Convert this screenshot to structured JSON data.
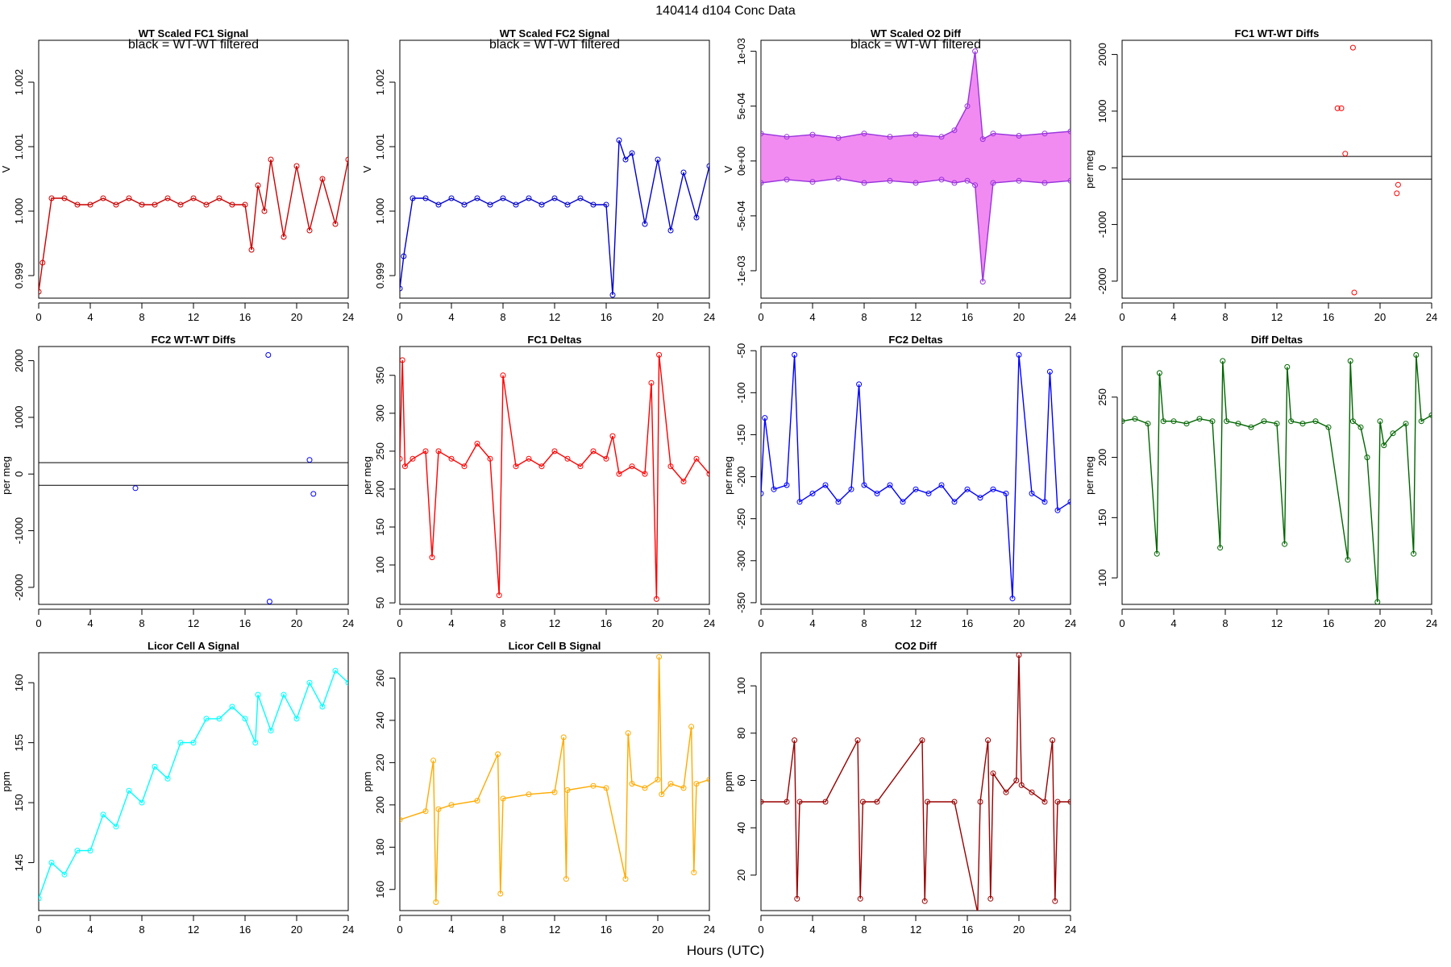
{
  "page_title": "140414   d104   Conc Data",
  "x_axis_label": "Hours (UTC)",
  "chart_data": [
    {
      "id": "wt-fc1",
      "type": "scatter",
      "title": "WT Scaled FC1 Signal",
      "annotation": "black = WT-WT filtered",
      "ylabel": "V",
      "color": "#cc0000",
      "xlim": [
        0,
        24
      ],
      "ylim": [
        0.99865,
        1.00265
      ],
      "yticks": [
        0.999,
        1.0,
        1.001,
        1.002
      ],
      "ytick_labels": [
        "0.999",
        "1.000",
        "1.001",
        "1.002"
      ],
      "xticks": [
        0,
        4,
        8,
        12,
        16,
        20,
        24
      ],
      "series": [
        {
          "name": "signal",
          "x": [
            0,
            0.3,
            1,
            2,
            3,
            4,
            5,
            6,
            7,
            8,
            9,
            10,
            11,
            12,
            13,
            14,
            15,
            16,
            16.5,
            17,
            17.5,
            18,
            19,
            20,
            21,
            22,
            23,
            24
          ],
          "y": [
            0.99875,
            0.9992,
            1.0002,
            1.0002,
            1.0001,
            1.0001,
            1.0002,
            1.0001,
            1.0002,
            1.0001,
            1.0001,
            1.0002,
            1.0001,
            1.0002,
            1.0001,
            1.0002,
            1.0001,
            1.0001,
            0.9994,
            1.0004,
            1.0,
            1.0008,
            0.9996,
            1.0007,
            0.9997,
            1.0005,
            0.9998,
            1.0008
          ]
        }
      ]
    },
    {
      "id": "wt-fc2",
      "type": "scatter",
      "title": "WT Scaled FC2 Signal",
      "annotation": "black = WT-WT filtered",
      "ylabel": "V",
      "color": "#0000cc",
      "xlim": [
        0,
        24
      ],
      "ylim": [
        0.99865,
        1.00265
      ],
      "yticks": [
        0.999,
        1.0,
        1.001,
        1.002
      ],
      "ytick_labels": [
        "0.999",
        "1.000",
        "1.001",
        "1.002"
      ],
      "xticks": [
        0,
        4,
        8,
        12,
        16,
        20,
        24
      ],
      "series": [
        {
          "name": "signal",
          "x": [
            0,
            0.3,
            1,
            2,
            3,
            4,
            5,
            6,
            7,
            8,
            9,
            10,
            11,
            12,
            13,
            14,
            15,
            16,
            16.5,
            17,
            17.5,
            18,
            19,
            20,
            21,
            22,
            23,
            24
          ],
          "y": [
            0.9988,
            0.9993,
            1.0002,
            1.0002,
            1.0001,
            1.0002,
            1.0001,
            1.0002,
            1.0001,
            1.0002,
            1.0001,
            1.0002,
            1.0001,
            1.0002,
            1.0001,
            1.0002,
            1.0001,
            1.0001,
            0.9987,
            1.0011,
            1.0008,
            1.0009,
            0.9998,
            1.0008,
            0.9997,
            1.0006,
            0.9999,
            1.0007
          ]
        }
      ]
    },
    {
      "id": "wt-o2",
      "type": "scatter",
      "title": "WT Scaled O2 Diff",
      "annotation": "black = WT-WT filtered",
      "ylabel": "V",
      "color": "#9933dd",
      "fill_color": "#ee77ee",
      "xlim": [
        0,
        24
      ],
      "ylim": [
        -0.00125,
        0.0011
      ],
      "yticks": [
        -0.001,
        -0.0005,
        0,
        0.0005,
        0.001
      ],
      "ytick_labels": [
        "-1e-03",
        "-5e-04",
        "0e+00",
        "5e-04",
        "1e-03"
      ],
      "xticks": [
        0,
        4,
        8,
        12,
        16,
        20,
        24
      ],
      "series": [
        {
          "name": "upper",
          "x": [
            0,
            2,
            4,
            6,
            8,
            10,
            12,
            14,
            15,
            16,
            16.6,
            17.2,
            18,
            20,
            22,
            24
          ],
          "y": [
            0.00025,
            0.00022,
            0.00024,
            0.00021,
            0.00025,
            0.00022,
            0.00024,
            0.00022,
            0.00028,
            0.0005,
            0.001,
            0.0002,
            0.00025,
            0.00023,
            0.00025,
            0.00027
          ]
        },
        {
          "name": "lower",
          "x": [
            0,
            2,
            4,
            6,
            8,
            10,
            12,
            14,
            15,
            16,
            16.6,
            17.2,
            18,
            20,
            22,
            24
          ],
          "y": [
            -0.0002,
            -0.00017,
            -0.00019,
            -0.00016,
            -0.0002,
            -0.00018,
            -0.0002,
            -0.00017,
            -0.0002,
            -0.00018,
            -0.00022,
            -0.0011,
            -0.0002,
            -0.00018,
            -0.0002,
            -0.00018
          ]
        }
      ]
    },
    {
      "id": "fc1-diffs",
      "type": "scatter",
      "title": "FC1 WT-WT Diffs",
      "ylabel": "per meg",
      "color": "#ff0000",
      "xlim": [
        0,
        24
      ],
      "ylim": [
        -2300,
        2250
      ],
      "yticks": [
        -2000,
        -1000,
        0,
        1000,
        2000
      ],
      "ytick_labels": [
        "-2000",
        "-1000",
        "0",
        "1000",
        "2000"
      ],
      "xticks": [
        0,
        4,
        8,
        12,
        16,
        20,
        24
      ],
      "hlines": [
        200,
        -200
      ],
      "series": [
        {
          "name": "diffs",
          "x": [
            16.7,
            17,
            17.3,
            17.9,
            18,
            21.3,
            21.4
          ],
          "y": [
            1050,
            1050,
            250,
            2120,
            -2200,
            -450,
            -300
          ]
        }
      ]
    },
    {
      "id": "fc2-diffs",
      "type": "scatter",
      "title": "FC2 WT-WT Diffs",
      "ylabel": "per meg",
      "color": "#0000ff",
      "xlim": [
        0,
        24
      ],
      "ylim": [
        -2300,
        2250
      ],
      "yticks": [
        -2000,
        -1000,
        0,
        1000,
        2000
      ],
      "ytick_labels": [
        "-2000",
        "-1000",
        "0",
        "1000",
        "2000"
      ],
      "xticks": [
        0,
        4,
        8,
        12,
        16,
        20,
        24
      ],
      "hlines": [
        200,
        -200
      ],
      "series": [
        {
          "name": "diffs",
          "x": [
            17.8,
            17.9,
            21,
            21.3,
            7.5
          ],
          "y": [
            2100,
            -2250,
            250,
            -350,
            -250
          ]
        }
      ]
    },
    {
      "id": "fc1-deltas",
      "type": "line",
      "title": "FC1 Deltas",
      "ylabel": "per meg",
      "color": "#ff0000",
      "xlim": [
        0,
        24
      ],
      "ylim": [
        48,
        388
      ],
      "yticks": [
        50,
        100,
        150,
        200,
        250,
        300,
        350
      ],
      "ytick_labels": [
        "50",
        "100",
        "150",
        "200",
        "250",
        "300",
        "350"
      ],
      "xticks": [
        0,
        4,
        8,
        12,
        16,
        20,
        24
      ],
      "series": [
        {
          "name": "deltas",
          "x": [
            0,
            0.2,
            0.4,
            1,
            2,
            2.5,
            3,
            4,
            5,
            6,
            7,
            7.7,
            8,
            9,
            10,
            11,
            12,
            13,
            14,
            15,
            16,
            16.5,
            17,
            18,
            19,
            19.5,
            19.9,
            20.1,
            21,
            22,
            23,
            24
          ],
          "y": [
            240,
            370,
            230,
            240,
            250,
            110,
            250,
            240,
            230,
            260,
            240,
            60,
            350,
            230,
            240,
            230,
            250,
            240,
            230,
            250,
            240,
            270,
            220,
            230,
            220,
            340,
            55,
            377,
            230,
            210,
            240,
            220
          ]
        }
      ]
    },
    {
      "id": "fc2-deltas",
      "type": "line",
      "title": "FC2 Deltas",
      "ylabel": "per meg",
      "color": "#0000ff",
      "xlim": [
        0,
        24
      ],
      "ylim": [
        -352,
        -45
      ],
      "yticks": [
        -350,
        -300,
        -250,
        -200,
        -150,
        -100,
        -50
      ],
      "ytick_labels": [
        "-350",
        "-300",
        "-250",
        "-200",
        "-150",
        "-100",
        "-50"
      ],
      "xticks": [
        0,
        4,
        8,
        12,
        16,
        20,
        24
      ],
      "series": [
        {
          "name": "deltas",
          "x": [
            0,
            0.3,
            1,
            2,
            2.6,
            3,
            4,
            5,
            6,
            7,
            7.6,
            8,
            9,
            10,
            11,
            12,
            13,
            14,
            15,
            16,
            17,
            18,
            19,
            19.5,
            20,
            21,
            22,
            22.4,
            23,
            24
          ],
          "y": [
            -220,
            -130,
            -215,
            -210,
            -55,
            -230,
            -220,
            -210,
            -230,
            -215,
            -90,
            -210,
            -220,
            -210,
            -230,
            -215,
            -220,
            -210,
            -230,
            -215,
            -225,
            -215,
            -220,
            -345,
            -55,
            -220,
            -230,
            -75,
            -240,
            -230
          ]
        }
      ]
    },
    {
      "id": "diff-deltas",
      "type": "line",
      "title": "Diff Deltas",
      "ylabel": "per meg",
      "color": "#006600",
      "xlim": [
        0,
        24
      ],
      "ylim": [
        78,
        292
      ],
      "yticks": [
        100,
        150,
        200,
        250
      ],
      "ytick_labels": [
        "100",
        "150",
        "200",
        "250"
      ],
      "xticks": [
        0,
        4,
        8,
        12,
        16,
        20,
        24
      ],
      "series": [
        {
          "name": "deltas",
          "x": [
            0,
            1,
            2,
            2.7,
            2.9,
            3.2,
            4,
            5,
            6,
            7,
            7.6,
            7.8,
            8.1,
            9,
            10,
            11,
            12,
            12.6,
            12.8,
            13.1,
            14,
            15,
            16,
            17.5,
            17.7,
            17.9,
            18.5,
            19,
            19.8,
            20,
            20.3,
            21,
            22,
            22.6,
            22.8,
            23.2,
            24
          ],
          "y": [
            230,
            232,
            228,
            120,
            270,
            230,
            230,
            228,
            232,
            230,
            125,
            280,
            230,
            228,
            225,
            230,
            228,
            128,
            275,
            230,
            228,
            230,
            225,
            115,
            280,
            230,
            225,
            200,
            80,
            230,
            210,
            220,
            228,
            120,
            285,
            230,
            235
          ]
        }
      ]
    },
    {
      "id": "licor-a",
      "type": "line",
      "title": "Licor Cell A Signal",
      "ylabel": "ppm",
      "color": "#00ffff",
      "xlim": [
        0,
        24
      ],
      "ylim": [
        141,
        162.5
      ],
      "yticks": [
        145,
        150,
        155,
        160
      ],
      "ytick_labels": [
        "145",
        "150",
        "155",
        "160"
      ],
      "xticks": [
        0,
        4,
        8,
        12,
        16,
        20,
        24
      ],
      "series": [
        {
          "name": "signal",
          "x": [
            0,
            1,
            2,
            3,
            4,
            5,
            6,
            7,
            8,
            9,
            10,
            11,
            12,
            13,
            14,
            15,
            16,
            16.8,
            17,
            18,
            19,
            20,
            21,
            22,
            23,
            24
          ],
          "y": [
            142,
            145,
            144,
            146,
            146,
            149,
            148,
            151,
            150,
            153,
            152,
            155,
            155,
            157,
            157,
            158,
            157,
            155,
            159,
            156,
            159,
            157,
            160,
            158,
            161,
            160
          ]
        }
      ]
    },
    {
      "id": "licor-b",
      "type": "line",
      "title": "Licor Cell B Signal",
      "ylabel": "ppm",
      "color": "#ffaa00",
      "xlim": [
        0,
        24
      ],
      "ylim": [
        150,
        272
      ],
      "yticks": [
        160,
        180,
        200,
        220,
        240,
        260
      ],
      "ytick_labels": [
        "160",
        "180",
        "200",
        "220",
        "240",
        "260"
      ],
      "xticks": [
        0,
        4,
        8,
        12,
        16,
        20,
        24
      ],
      "series": [
        {
          "name": "signal",
          "x": [
            0,
            2,
            2.6,
            2.8,
            3,
            4,
            6,
            7.6,
            7.8,
            8,
            10,
            12,
            12.7,
            12.9,
            13,
            15,
            16,
            17.5,
            17.7,
            18,
            19,
            20,
            20.1,
            20.3,
            21,
            22,
            22.6,
            22.8,
            23,
            24
          ],
          "y": [
            193,
            197,
            221,
            154,
            198,
            200,
            202,
            224,
            158,
            203,
            205,
            206,
            232,
            165,
            207,
            209,
            208,
            165,
            234,
            210,
            208,
            212,
            270,
            205,
            210,
            208,
            237,
            168,
            210,
            212
          ]
        }
      ]
    },
    {
      "id": "co2-diff",
      "type": "line",
      "title": "CO2 Diff",
      "ylabel": "ppm",
      "color": "#990000",
      "xlim": [
        0,
        24
      ],
      "ylim": [
        5,
        114
      ],
      "yticks": [
        20,
        40,
        60,
        80,
        100
      ],
      "ytick_labels": [
        "20",
        "40",
        "60",
        "80",
        "100"
      ],
      "xticks": [
        0,
        4,
        8,
        12,
        16,
        20,
        24
      ],
      "series": [
        {
          "name": "diff",
          "x": [
            0,
            2,
            2.6,
            2.8,
            3,
            5,
            7.5,
            7.7,
            7.9,
            9,
            12.5,
            12.7,
            12.9,
            15,
            16.8,
            17,
            17.6,
            17.8,
            18,
            19,
            19.8,
            20,
            20.2,
            21,
            22,
            22.6,
            22.8,
            23,
            24
          ],
          "y": [
            51,
            51,
            77,
            10,
            51,
            51,
            77,
            10,
            51,
            51,
            77,
            9,
            51,
            51,
            4,
            51,
            77,
            10,
            63,
            55,
            60,
            113,
            58,
            55,
            51,
            77,
            9,
            51,
            51
          ]
        }
      ]
    }
  ]
}
